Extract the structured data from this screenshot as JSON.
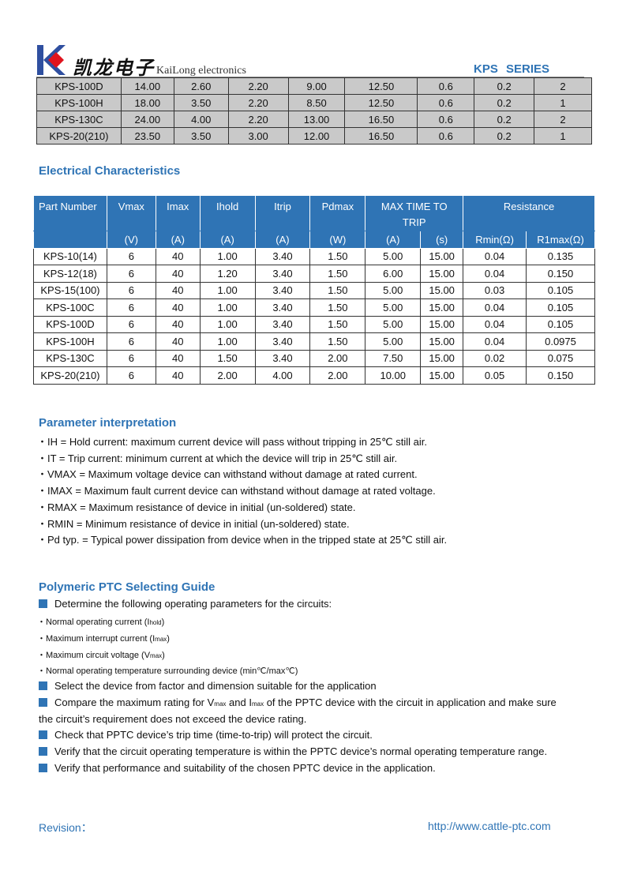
{
  "header": {
    "brand_cn": "凯龙电子",
    "brand_en": "KaiLong electronics",
    "series": "KPS   SERIES",
    "logo_colors": {
      "k": "#2f4fa0",
      "diamond": "#e0141e"
    }
  },
  "top_table": {
    "rows": [
      [
        "KPS-100D",
        "14.00",
        "2.60",
        "2.20",
        "9.00",
        "12.50",
        "0.6",
        "0.2",
        "2"
      ],
      [
        "KPS-100H",
        "18.00",
        "3.50",
        "2.20",
        "8.50",
        "12.50",
        "0.6",
        "0.2",
        "1"
      ],
      [
        "KPS-130C",
        "24.00",
        "4.00",
        "2.20",
        "13.00",
        "16.50",
        "0.6",
        "0.2",
        "2"
      ],
      [
        "KPS-20(210)",
        "23.50",
        "3.50",
        "3.00",
        "12.00",
        "16.50",
        "0.6",
        "0.2",
        "1"
      ]
    ]
  },
  "electrical": {
    "title": "Electrical Characteristics",
    "headers": {
      "part": "Part Number",
      "vmax": "Vmax",
      "imax": "Imax",
      "ihold": "Ihold",
      "itrip": "Itrip",
      "pdmax": "Pdmax",
      "time": "MAX TIME TO TRIP",
      "resistance": "Resistance"
    },
    "units": [
      "(V)",
      "(A)",
      "(A)",
      "(A)",
      "(W)",
      "(A)",
      "(s)",
      "Rmin(Ω)",
      "R1max(Ω)"
    ],
    "rows": [
      [
        "KPS-10(14)",
        "6",
        "40",
        "1.00",
        "3.40",
        "1.50",
        "5.00",
        "15.00",
        "0.04",
        "0.135"
      ],
      [
        "KPS-12(18)",
        "6",
        "40",
        "1.20",
        "3.40",
        "1.50",
        "6.00",
        "15.00",
        "0.04",
        "0.150"
      ],
      [
        "KPS-15(100)",
        "6",
        "40",
        "1.00",
        "3.40",
        "1.50",
        "5.00",
        "15.00",
        "0.03",
        "0.105"
      ],
      [
        "KPS-100C",
        "6",
        "40",
        "1.00",
        "3.40",
        "1.50",
        "5.00",
        "15.00",
        "0.04",
        "0.105"
      ],
      [
        "KPS-100D",
        "6",
        "40",
        "1.00",
        "3.40",
        "1.50",
        "5.00",
        "15.00",
        "0.04",
        "0.105"
      ],
      [
        "KPS-100H",
        "6",
        "40",
        "1.00",
        "3.40",
        "1.50",
        "5.00",
        "15.00",
        "0.04",
        "0.0975"
      ],
      [
        "KPS-130C",
        "6",
        "40",
        "1.50",
        "3.40",
        "2.00",
        "7.50",
        "15.00",
        "0.02",
        "0.075"
      ],
      [
        "KPS-20(210)",
        "6",
        "40",
        "2.00",
        "4.00",
        "2.00",
        "10.00",
        "15.00",
        "0.05",
        "0.150"
      ]
    ]
  },
  "params": {
    "title": "Parameter interpretation",
    "items": [
      "・IH = Hold current: maximum current device will pass without tripping in 25℃  still air.",
      "・IT = Trip current: minimum current at which the device will trip in 25℃  still air.",
      "・VMAX = Maximum voltage device can withstand without damage at rated current.",
      "・IMAX = Maximum fault current device can withstand without damage at rated voltage.",
      "・RMAX = Maximum resistance of device in initial (un-soldered) state.",
      "・RMIN = Minimum resistance of device in initial (un-soldered) state.",
      "・Pd typ. = Typical power dissipation from device when in the tripped state at 25℃  still air."
    ]
  },
  "guide": {
    "title": "Polymeric PTC Selecting Guide",
    "step1": "Determine the following operating parameters for the circuits:",
    "sub": [
      {
        "pre": "・Normal operating current (I",
        "sub": "hold",
        "post": ")"
      },
      {
        "pre": "・Maximum interrupt current (I",
        "sub": "max",
        "post": ")"
      },
      {
        "pre": "・Maximum circuit voltage (V",
        "sub": "max",
        "post": ")"
      },
      {
        "pre": "・Normal operating temperature surrounding device (min℃/max℃)",
        "sub": "",
        "post": ""
      }
    ],
    "step2": "Select the device from factor and dimension suitable for the application",
    "step3a": "Compare the maximum rating for V",
    "step3b": "max",
    "step3c": " and I",
    "step3d": "max",
    "step3e": " of the PPTC device with the circuit in application and make sure",
    "step3f": "the circuit’s requirement does not exceed the device rating.",
    "step4": "Check that PPTC device’s trip time (time-to-trip) will protect the circuit.",
    "step5": "Verify that the circuit operating temperature is within the PPTC device’s normal operating temperature range.",
    "step6": "Verify that performance and suitability of the chosen PPTC device in the application."
  },
  "footer": {
    "revision": "Revision：",
    "url": "http://www.cattle-ptc.com"
  }
}
